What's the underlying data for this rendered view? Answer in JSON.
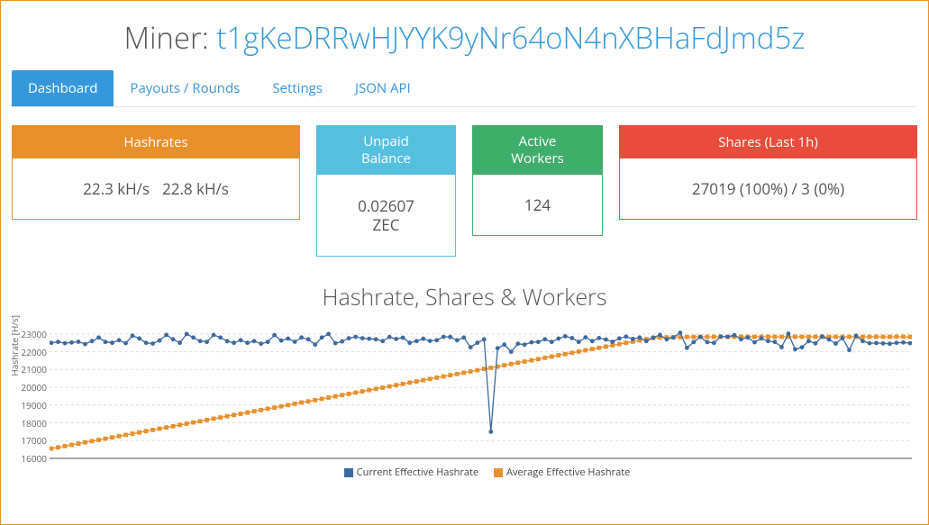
{
  "title_label": "Miner:",
  "miner_address": "t1gKeDRRwHJYYK9yNr64oN4nXBHaFdJmd5z",
  "tabs": [
    {
      "label": "Dashboard",
      "active": true
    },
    {
      "label": "Payouts / Rounds",
      "active": false
    },
    {
      "label": "Settings",
      "active": false
    },
    {
      "label": "JSON API",
      "active": false
    }
  ],
  "cards": {
    "hashrates": {
      "title": "Hashrates",
      "value1": "22.3 kH/s",
      "value2": "22.8 kH/s",
      "accent": "#e8902c"
    },
    "unpaid": {
      "title_l1": "Unpaid",
      "title_l2": "Balance",
      "value_l1": "0.02607",
      "value_l2": "ZEC",
      "accent": "#54c0de"
    },
    "workers": {
      "title_l1": "Active",
      "title_l2": "Workers",
      "value": "124",
      "accent": "#3fae6a"
    },
    "shares": {
      "title": "Shares (Last 1h)",
      "value": "27019 (100%) / 3 (0%)",
      "accent": "#e74c3c"
    }
  },
  "chart": {
    "title": "Hashrate, Shares & Workers",
    "ylabel": "Hashrate [H/s]",
    "ylim": [
      16000,
      23500
    ],
    "yticks": [
      16000,
      17000,
      18000,
      19000,
      20000,
      21000,
      22000,
      23000
    ],
    "grid_color": "#dcdcdc",
    "background": "#ffffff",
    "axis_color": "#555555",
    "tick_fontsize": 10,
    "legend": [
      {
        "label": "Current Effective Hashrate",
        "color": "#3b6aa0"
      },
      {
        "label": "Average Effective Hashrate",
        "color": "#e8902c"
      }
    ],
    "series": {
      "current": {
        "color": "#3b6aa0",
        "marker": "circle",
        "marker_size": 2.4,
        "line_width": 1.3,
        "values": [
          22500,
          22550,
          22480,
          22520,
          22560,
          22430,
          22600,
          22800,
          22550,
          22500,
          22650,
          22480,
          22900,
          22750,
          22500,
          22460,
          22630,
          22950,
          22700,
          22500,
          23000,
          22800,
          22600,
          22550,
          22950,
          22800,
          22600,
          22500,
          22650,
          22500,
          22600,
          22450,
          22550,
          22930,
          22630,
          22740,
          22560,
          22800,
          22700,
          22400,
          22800,
          23000,
          22480,
          22580,
          22760,
          22840,
          22760,
          22730,
          22700,
          22600,
          22830,
          22720,
          22790,
          22500,
          22600,
          22730,
          22610,
          22650,
          22840,
          22830,
          22650,
          22800,
          22250,
          22500,
          22700,
          17500,
          22200,
          22400,
          22000,
          22450,
          22400,
          22530,
          22550,
          22700,
          22550,
          22740,
          22870,
          22770,
          22550,
          22810,
          22600,
          22770,
          22690,
          22560,
          22750,
          22850,
          22720,
          22800,
          22600,
          22800,
          22950,
          22700,
          22800,
          23070,
          22220,
          22540,
          22830,
          22540,
          22500,
          22860,
          22840,
          22940,
          22700,
          22800,
          22530,
          22750,
          22600,
          22550,
          22260,
          23020,
          22140,
          22250,
          22600,
          22470,
          22860,
          22690,
          22460,
          22760,
          22095,
          22900,
          22600,
          22480,
          22490,
          22470,
          22450,
          22500,
          22520,
          22480
        ]
      },
      "average": {
        "color": "#e8902c",
        "marker": "square",
        "marker_size": 2.4,
        "line_width": 1.3,
        "values": [
          16550,
          16620,
          16690,
          16760,
          16830,
          16900,
          16970,
          17040,
          17110,
          17180,
          17250,
          17320,
          17390,
          17460,
          17530,
          17600,
          17670,
          17740,
          17810,
          17880,
          17950,
          18020,
          18090,
          18160,
          18230,
          18300,
          18370,
          18440,
          18510,
          18580,
          18650,
          18720,
          18790,
          18860,
          18930,
          19000,
          19070,
          19140,
          19210,
          19280,
          19350,
          19420,
          19490,
          19560,
          19630,
          19700,
          19770,
          19840,
          19910,
          19980,
          20050,
          20120,
          20190,
          20260,
          20330,
          20400,
          20470,
          20540,
          20610,
          20680,
          20750,
          20820,
          20890,
          20960,
          21030,
          21100,
          21170,
          21240,
          21310,
          21380,
          21450,
          21520,
          21590,
          21660,
          21730,
          21800,
          21870,
          21940,
          22010,
          22080,
          22150,
          22220,
          22290,
          22360,
          22430,
          22500,
          22570,
          22640,
          22710,
          22770,
          22800,
          22810,
          22820,
          22820,
          22830,
          22830,
          22840,
          22840,
          22840,
          22840,
          22840,
          22840,
          22840,
          22840,
          22840,
          22840,
          22840,
          22840,
          22840,
          22840,
          22840,
          22840,
          22840,
          22840,
          22840,
          22840,
          22840,
          22840,
          22840,
          22840,
          22840,
          22840,
          22840,
          22840,
          22840,
          22840,
          22840,
          22840
        ]
      }
    }
  }
}
